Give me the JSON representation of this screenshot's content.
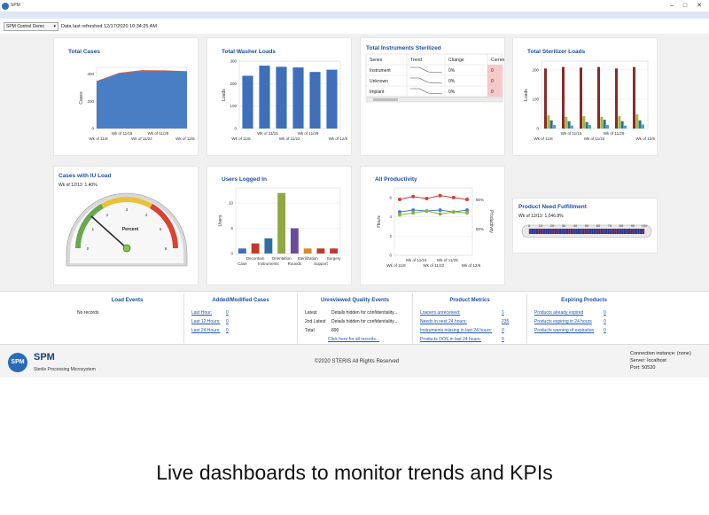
{
  "window": {
    "title": "SPM"
  },
  "toolbar": {
    "selected_dashboard": "SPM Control Demo",
    "refresh_label": "Data last refreshed 12/17/2020 10:34:25 AM"
  },
  "cards": {
    "total_cases": {
      "title": "Total Cases",
      "ylabel": "Cases",
      "yticks": [
        "0",
        "200",
        "400"
      ],
      "xticks_top": [
        "Wk of 11/15",
        "Wk of 11/29"
      ],
      "xticks_bottom": [
        "Wk of 11/8",
        "Wk of 11/22",
        "Wk of 12/6"
      ]
    },
    "washer_loads": {
      "title": "Total Washer Loads",
      "ylabel": "Loads",
      "yticks": [
        "0",
        "100",
        "200",
        "300"
      ],
      "xticks_top": [
        "Wk of 11/15",
        "Wk of 11/29"
      ],
      "xticks_bottom": [
        "Wk of 11/8",
        "Wk of 11/22",
        "Wk of 12/6"
      ]
    },
    "instruments": {
      "title": "Total Instruments Sterilized",
      "headers": [
        "Series",
        "Trend",
        "Change",
        "Curren"
      ],
      "rows": [
        {
          "series": "Instrument",
          "change": "0%",
          "current": "0"
        },
        {
          "series": "Unknown",
          "change": "0%",
          "current": "0"
        },
        {
          "series": "Implant",
          "change": "0%",
          "current": "0"
        }
      ]
    },
    "sterilizer_loads": {
      "title": "Total Sterilizer Loads",
      "ylabel": "Loads",
      "yticks": [
        "0",
        "100",
        "200"
      ],
      "xticks_top": [
        "Wk of 11/15",
        "Wk of 11/29"
      ],
      "xticks_bottom": [
        "Wk of 11/8",
        "Wk of 11/22",
        "Wk of 12/6"
      ]
    },
    "iu_load": {
      "title": "Cases with IU Load",
      "subtitle": "Wk of 12/13: 1.40%",
      "gauge_label": "Percent",
      "ticks": [
        "0",
        "1",
        "2",
        "3",
        "4",
        "5",
        "6"
      ]
    },
    "users": {
      "title": "Users Logged In",
      "ylabel": "Users",
      "yticks": [
        "0",
        "5",
        "10"
      ],
      "xticks_top": [
        "Decontam",
        "Orientation",
        "Sterilization",
        "Surgery"
      ],
      "xticks_bottom": [
        "Case",
        "Instruments",
        "Rounds",
        "Support"
      ]
    },
    "productivity": {
      "title": "All Productivity",
      "ylabel": "Hours",
      "y2label": "Productivity",
      "yticks": [
        "0",
        "2",
        "4",
        "6"
      ],
      "y2ticks": [
        "60%",
        "90%"
      ],
      "xticks_top": [
        "Wk of 11/15",
        "Wk of 11/29"
      ],
      "xticks_bottom": [
        "Wk of 11/8",
        "Wk of 11/22",
        "Wk of 12/6"
      ]
    },
    "need": {
      "title": "Product Need Fulfillment",
      "subtitle": "Wk of 12/13: 1,046.8%",
      "ticks": [
        "0",
        "10",
        "20",
        "30",
        "40",
        "50",
        "60",
        "70",
        "80",
        "90",
        "100"
      ]
    }
  },
  "chart_data": [
    {
      "type": "area",
      "title": "Total Cases",
      "ylabel": "Cases",
      "ylim": [
        0,
        450
      ],
      "x": [
        "Wk of 11/8",
        "Wk of 11/15",
        "Wk of 11/22",
        "Wk of 11/29",
        "Wk of 12/6"
      ],
      "series": [
        {
          "values": [
            345,
            405,
            420,
            425,
            418
          ],
          "color": "#4a7ec4"
        },
        {
          "values": [
            350,
            410,
            430,
            428,
            422
          ],
          "color": "#d2553c"
        }
      ]
    },
    {
      "type": "bar",
      "title": "Total Washer Loads",
      "ylabel": "Loads",
      "ylim": [
        0,
        300
      ],
      "categories": [
        "Wk of 11/8",
        "Wk of 11/15",
        "Wk of 11/22",
        "Wk of 11/29",
        "Wk of 12/6",
        "Wk of 12/13"
      ],
      "values": [
        235,
        280,
        275,
        272,
        252,
        262
      ],
      "color": "#3f6fba"
    },
    {
      "type": "bar",
      "title": "Total Sterilizer Loads",
      "ylabel": "Loads",
      "ylim": [
        0,
        230
      ],
      "categories": [
        "Wk of 11/8",
        "Wk of 11/15",
        "Wk of 11/22",
        "Wk of 11/29",
        "Wk of 12/6",
        "Wk of 12/13"
      ],
      "series": [
        {
          "color": "#8a2a2a",
          "values": [
            205,
            210,
            208,
            210,
            205,
            210
          ]
        },
        {
          "color": "#a6b834",
          "values": [
            45,
            40,
            42,
            40,
            42,
            48
          ]
        },
        {
          "color": "#2f6f9e",
          "values": [
            28,
            25,
            22,
            30,
            25,
            28
          ]
        },
        {
          "color": "#45a8c8",
          "values": [
            12,
            10,
            12,
            12,
            10,
            14
          ]
        }
      ]
    },
    {
      "type": "bar",
      "title": "Users Logged In",
      "ylabel": "Users",
      "ylim": [
        0,
        13
      ],
      "categories": [
        "Case",
        "Decontam",
        "Instruments",
        "Orientation",
        "Rounds",
        "Sterilization",
        "Support",
        "Surgery"
      ],
      "values": [
        1,
        2,
        3,
        12,
        5,
        1,
        1,
        1
      ],
      "colors": [
        "#3f6fba",
        "#c0392b",
        "#2f6f9e",
        "#8fa842",
        "#6a4c9c",
        "#d98a2b",
        "#c0392b",
        "#c0392b"
      ]
    },
    {
      "type": "line",
      "title": "All Productivity",
      "ylabel": "Hours",
      "ylim": [
        0,
        7
      ],
      "x": [
        "Wk of 11/8",
        "Wk of 11/15",
        "Wk of 11/22",
        "Wk of 11/29",
        "Wk of 12/6",
        "Wk of 12/13"
      ],
      "series": [
        {
          "color": "#d04040",
          "values": [
            5.8,
            6.1,
            5.9,
            6.2,
            6.0,
            5.8
          ]
        },
        {
          "color": "#4a7ec4",
          "values": [
            4.5,
            4.7,
            4.6,
            4.7,
            4.5,
            4.7
          ]
        },
        {
          "color": "#8ab83a",
          "values": [
            4.2,
            4.4,
            4.6,
            4.3,
            4.5,
            4.4
          ]
        }
      ]
    }
  ],
  "bottom": {
    "load_events": {
      "title": "Load Events",
      "empty": "No records"
    },
    "added_modified": {
      "title": "Added/Modified Cases",
      "rows": [
        {
          "label": "Last Hour:",
          "value": "0"
        },
        {
          "label": "Last 12 Hours:",
          "value": "0"
        },
        {
          "label": "Last 24 Hours:",
          "value": "0"
        }
      ]
    },
    "quality": {
      "title": "Unreviewed Quality Events",
      "rows": [
        {
          "label": "Latest",
          "value": "Details hidden for confidentiality..."
        },
        {
          "label": "2nd Latest",
          "value": "Details hidden for confidentiality..."
        },
        {
          "label": "Total:",
          "value": "890"
        }
      ],
      "link": "Click here for all records..."
    },
    "metrics": {
      "title": "Product Metrics",
      "rows": [
        {
          "label": "Loaners unreceived:",
          "value": "1"
        },
        {
          "label": "Needs in next 24 hours:",
          "value": "235"
        },
        {
          "label": "Instruments missing in last 24 hours:",
          "value": "0"
        },
        {
          "label": "Products OOS in last 24 hours:",
          "value": "0"
        }
      ]
    },
    "expiring": {
      "title": "Expiring Products",
      "rows": [
        {
          "label": "Products already expired",
          "value": "0"
        },
        {
          "label": "Products expiring in 24 hours",
          "value": "0"
        },
        {
          "label": "Products warning of expiration",
          "value": "0"
        }
      ]
    }
  },
  "footer": {
    "logo_text": "SPM",
    "name": "SPM",
    "subtitle": "Sterile Processing Microsystem",
    "copyright": "©2020 STERIS All Rights Reserved",
    "connection": "Connection instance: (none)",
    "server": "Server: localhost",
    "port": "Port: 50520"
  },
  "caption": "Live dashboards to monitor trends and KPIs"
}
